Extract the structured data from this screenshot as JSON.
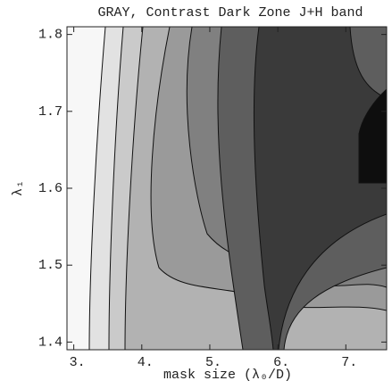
{
  "chart_data": {
    "type": "contour",
    "title": "GRAY, Contrast Dark Zone J+H band",
    "xlabel": "mask size (λ₀/D)",
    "ylabel": "λ₁",
    "xlim": [
      2.9,
      7.6
    ],
    "ylim": [
      1.39,
      1.81
    ],
    "xticks": [
      {
        "value": 3,
        "label": "3."
      },
      {
        "value": 4,
        "label": "4."
      },
      {
        "value": 5,
        "label": "5."
      },
      {
        "value": 6,
        "label": "6."
      },
      {
        "value": 7,
        "label": "7."
      }
    ],
    "yticks": [
      1.4,
      1.5,
      1.6,
      1.7,
      1.8
    ]
  }
}
